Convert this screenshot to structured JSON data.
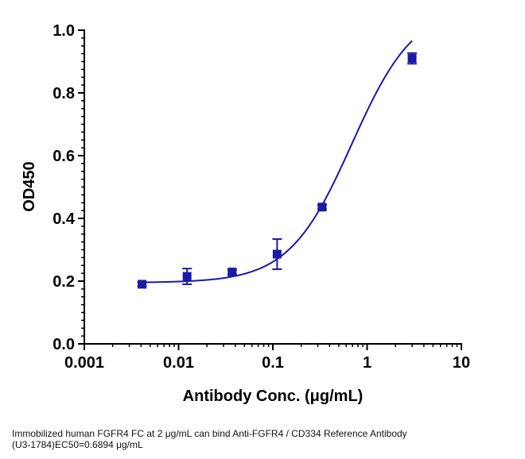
{
  "chart_data": {
    "type": "scatter",
    "xlabel": "Antibody Conc. (μg/mL)",
    "ylabel": "OD450",
    "x_scale": "log",
    "xlim": [
      0.001,
      10
    ],
    "ylim": [
      0,
      1.0
    ],
    "x_ticks": [
      {
        "value": 0.001,
        "label": "0.001"
      },
      {
        "value": 0.01,
        "label": "0.01"
      },
      {
        "value": 0.1,
        "label": "0.1"
      },
      {
        "value": 1,
        "label": "1"
      },
      {
        "value": 10,
        "label": "10"
      }
    ],
    "y_ticks": [
      {
        "value": 0.0,
        "label": "0.0"
      },
      {
        "value": 0.2,
        "label": "0.2"
      },
      {
        "value": 0.4,
        "label": "0.4"
      },
      {
        "value": 0.6,
        "label": "0.6"
      },
      {
        "value": 0.8,
        "label": "0.8"
      },
      {
        "value": 1.0,
        "label": "1.0"
      }
    ],
    "series": [
      {
        "color": "#1a1aa6",
        "points": [
          {
            "x": 0.0041,
            "y": 0.19,
            "err_low": 0.183,
            "err_high": 0.197
          },
          {
            "x": 0.0123,
            "y": 0.215,
            "err_low": 0.19,
            "err_high": 0.24
          },
          {
            "x": 0.037,
            "y": 0.229,
            "err_low": 0.222,
            "err_high": 0.236
          },
          {
            "x": 0.111,
            "y": 0.286,
            "err_low": 0.238,
            "err_high": 0.334
          },
          {
            "x": 0.333,
            "y": 0.436,
            "err_low": 0.429,
            "err_high": 0.443
          },
          {
            "x": 3.0,
            "y": 0.91,
            "err_low": 0.893,
            "err_high": 0.927
          }
        ],
        "fit": {
          "model": "4PL",
          "bottom": 0.195,
          "top": 1.08,
          "ec50": 0.6894,
          "hill": 1.3
        }
      }
    ],
    "grid": false,
    "legend": "none"
  },
  "caption": {
    "line1": "Immobilized human FGFR4 FC   at 2  μg/mL can bind  Anti-FGFR4 / CD334 Reference Antibody",
    "line2": "(U3-1784)EC50=0.6894 μg/mL"
  }
}
